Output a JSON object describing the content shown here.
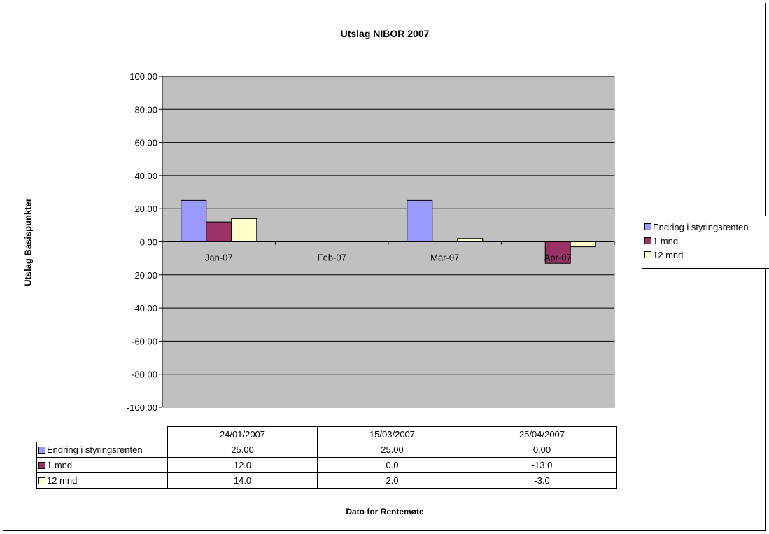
{
  "chart_data": {
    "type": "bar",
    "title": "Utslag NIBOR 2007",
    "ylabel": "Utslag Basispunkter",
    "xlabel": "Dato for Rentemøte",
    "ylim": [
      -100,
      100
    ],
    "y_ticks": [
      "100.00",
      "80.00",
      "60.00",
      "40.00",
      "20.00",
      "0.00",
      "-20.00",
      "-40.00",
      "-60.00",
      "-80.00",
      "-100.00"
    ],
    "categories": [
      "Jan-07",
      "Feb-07",
      "Mar-07",
      "Apr-07"
    ],
    "series": [
      {
        "name": "Endring i styringsrenten",
        "color": "#9999ff",
        "values": [
          25,
          null,
          25,
          0
        ]
      },
      {
        "name": "1 mnd",
        "color": "#993366",
        "values": [
          12,
          null,
          0,
          -13
        ]
      },
      {
        "name": "12 mnd",
        "color": "#ffffcc",
        "values": [
          14,
          null,
          2,
          -3
        ]
      }
    ],
    "grid": true,
    "plot_background": "#c0c0c0",
    "legend_position": "right",
    "data_table": {
      "columns": [
        "24/01/2007",
        "15/03/2007",
        "25/04/2007"
      ],
      "rows": [
        {
          "label": "Endring i styringsrenten",
          "values": [
            "25.00",
            "25.00",
            "0.00"
          ]
        },
        {
          "label": "1 mnd",
          "values": [
            "12.0",
            "0.0",
            "-13.0"
          ]
        },
        {
          "label": "12 mnd",
          "values": [
            "14.0",
            "2.0",
            "-3.0"
          ]
        }
      ]
    }
  }
}
